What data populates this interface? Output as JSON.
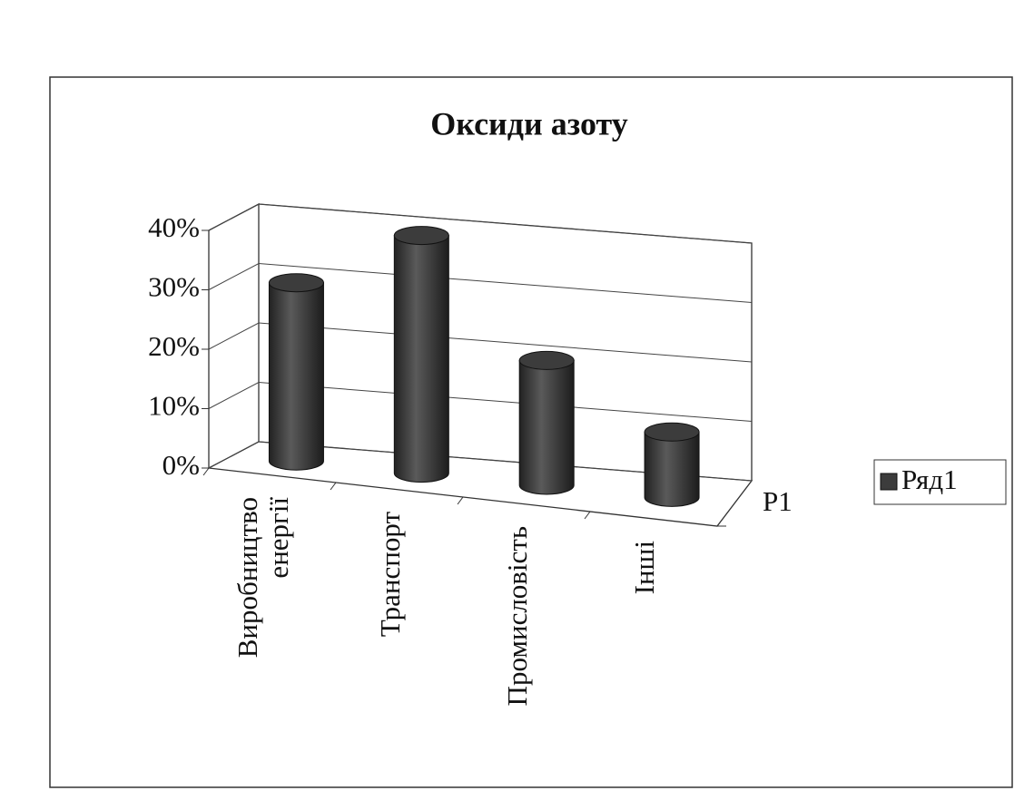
{
  "chart_data": {
    "type": "bar3d_cylinder",
    "title": "Оксиди азоту",
    "categories": [
      "Виробництво енергії",
      "Транспорт",
      "Промисловість",
      "Інші"
    ],
    "series": [
      {
        "name": "Ряд1",
        "color": "#3c3c3c",
        "values": [
          30,
          40,
          21,
          11
        ]
      }
    ],
    "depth_categories": [
      "Р1"
    ],
    "ylim": [
      0,
      40
    ],
    "yticks": [
      {
        "value": 0,
        "label": "0%"
      },
      {
        "value": 10,
        "label": "10%"
      },
      {
        "value": 20,
        "label": "20%"
      },
      {
        "value": 30,
        "label": "30%"
      },
      {
        "value": 40,
        "label": "40%"
      }
    ],
    "grid": true,
    "legend": "right"
  }
}
